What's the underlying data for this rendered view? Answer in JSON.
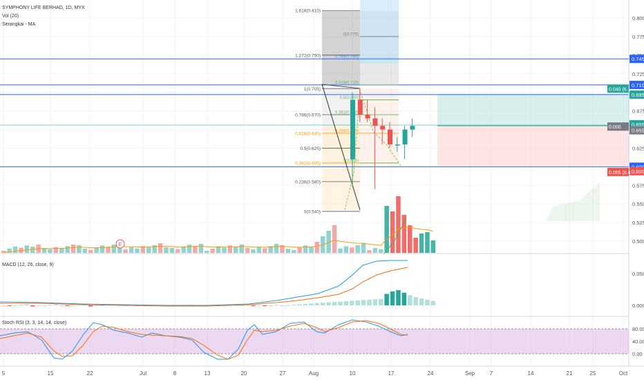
{
  "header": {
    "title": "SYMPHONY LIFE BERHAD, 1D, MYX",
    "vol": "Vol (20)",
    "ma": "Serangkai - MA"
  },
  "price_axis": {
    "ticks": [
      "0.800",
      "0.775",
      "0.750",
      "0.725",
      "0.700",
      "0.675",
      "0.650",
      "0.625",
      "0.600",
      "0.575",
      "0.550",
      "0.525",
      "0.500"
    ],
    "tick_values": [
      0.8,
      0.775,
      0.75,
      0.725,
      0.7,
      0.675,
      0.65,
      0.625,
      0.6,
      0.575,
      0.55,
      0.525,
      0.5
    ],
    "badges": [
      {
        "text": "0.745",
        "value": 0.745,
        "color": "#2962ff"
      },
      {
        "text": "0.710",
        "value": 0.71,
        "color": "#2962ff"
      },
      {
        "text": "0.695",
        "value": 0.697,
        "color": "#26a69a"
      },
      {
        "text": "0.655",
        "value": 0.657,
        "color": "#26a69a"
      },
      {
        "text": "0.655",
        "value": 0.649,
        "color": "#787b86"
      },
      {
        "text": "0.600",
        "value": 0.6,
        "color": "#2962ff"
      },
      {
        "text": "0.600",
        "value": 0.594,
        "color": "#ef5350"
      }
    ],
    "left_badges": [
      {
        "text": "0.040 (6.1",
        "value": 0.705,
        "color": "#26a69a"
      },
      {
        "text": "0.000",
        "value": 0.654,
        "color": "#787b86"
      },
      {
        "text": "0.055 (8.4",
        "value": 0.593,
        "color": "#ef5350"
      }
    ]
  },
  "date_axis": {
    "labels": [
      "5",
      "15",
      "22",
      "Jul",
      "8",
      "13",
      "20",
      "27",
      "Aug",
      "10",
      "17",
      "24",
      "Sep",
      "7",
      "14",
      "21",
      "25",
      "Oct"
    ]
  },
  "fib_main": {
    "levels": [
      {
        "label": "1.618(0.810)",
        "value": 0.81,
        "color": "#555555"
      },
      {
        "label": "1.272(0.750)",
        "value": 0.75,
        "color": "#555555"
      },
      {
        "label": "1(0.705)",
        "value": 0.705,
        "color": "#555555"
      },
      {
        "label": "0.786(0.670)",
        "value": 0.67,
        "color": "#555555"
      },
      {
        "label": "0.618(0.645)",
        "value": 0.645,
        "color": "#ff9800"
      },
      {
        "label": "0.5(0.625)",
        "value": 0.625,
        "color": "#555555"
      },
      {
        "label": "0.382(0.605)",
        "value": 0.605,
        "color": "#ff9800"
      },
      {
        "label": "0.236(0.580)",
        "value": 0.58,
        "color": "#555555"
      },
      {
        "label": "0(0.540)",
        "value": 0.54,
        "color": "#555555"
      }
    ]
  },
  "fib_small": {
    "levels": [
      {
        "label": "0(0.775)",
        "value": 0.775,
        "color": "#777777"
      },
      {
        "label": "0.786(0.745)",
        "value": 0.745,
        "color": "#2196f3"
      },
      {
        "label": "0.618(0.710)",
        "value": 0.71,
        "color": "#4caf50"
      },
      {
        "label": "0.5(0.690)",
        "value": 0.69,
        "color": "#4caf50"
      },
      {
        "label": "0.382(0.670)",
        "value": 0.67,
        "color": "#4caf50"
      },
      {
        "label": "0.236(0.645)",
        "value": 0.645,
        "color": "#ff9800"
      },
      {
        "label": "0(0.605)",
        "value": 0.605,
        "color": "#4caf50"
      }
    ]
  },
  "macd": {
    "label": "MACD (12, 26, close, 9)",
    "ticks": [
      "0.050",
      "0.000"
    ],
    "tick_values": [
      0.05,
      0.0
    ]
  },
  "stoch": {
    "label": "Stoch RSI (3, 3, 14, 14, close)",
    "ticks": [
      "80.00",
      "40.00",
      "0.00"
    ],
    "tick_values": [
      80,
      40,
      0
    ]
  },
  "colors": {
    "up": "#26a69a",
    "down": "#ef5350",
    "blue_line": "#2962ff",
    "macd_line": "#2196f3",
    "signal_line": "#ff6d00",
    "stoch_fill": "#e1bee7"
  },
  "chart_data": {
    "type": "candlestick",
    "candles": [
      {
        "o": 0.61,
        "h": 0.7,
        "l": 0.575,
        "c": 0.69,
        "vol": 78
      },
      {
        "o": 0.69,
        "h": 0.705,
        "l": 0.66,
        "c": 0.67,
        "vol": 90
      },
      {
        "o": 0.67,
        "h": 0.69,
        "l": 0.66,
        "c": 0.665,
        "vol": 75
      },
      {
        "o": 0.665,
        "h": 0.68,
        "l": 0.57,
        "c": 0.655,
        "vol": 68
      },
      {
        "o": 0.655,
        "h": 0.665,
        "l": 0.63,
        "c": 0.65,
        "vol": 57
      },
      {
        "o": 0.65,
        "h": 0.66,
        "l": 0.625,
        "c": 0.63,
        "vol": 40
      },
      {
        "o": 0.63,
        "h": 0.64,
        "l": 0.62,
        "c": 0.63,
        "vol": 33
      },
      {
        "o": 0.63,
        "h": 0.655,
        "l": 0.61,
        "c": 0.65,
        "vol": 44
      },
      {
        "o": 0.65,
        "h": 0.665,
        "l": 0.64,
        "c": 0.655,
        "vol": 30
      }
    ]
  }
}
